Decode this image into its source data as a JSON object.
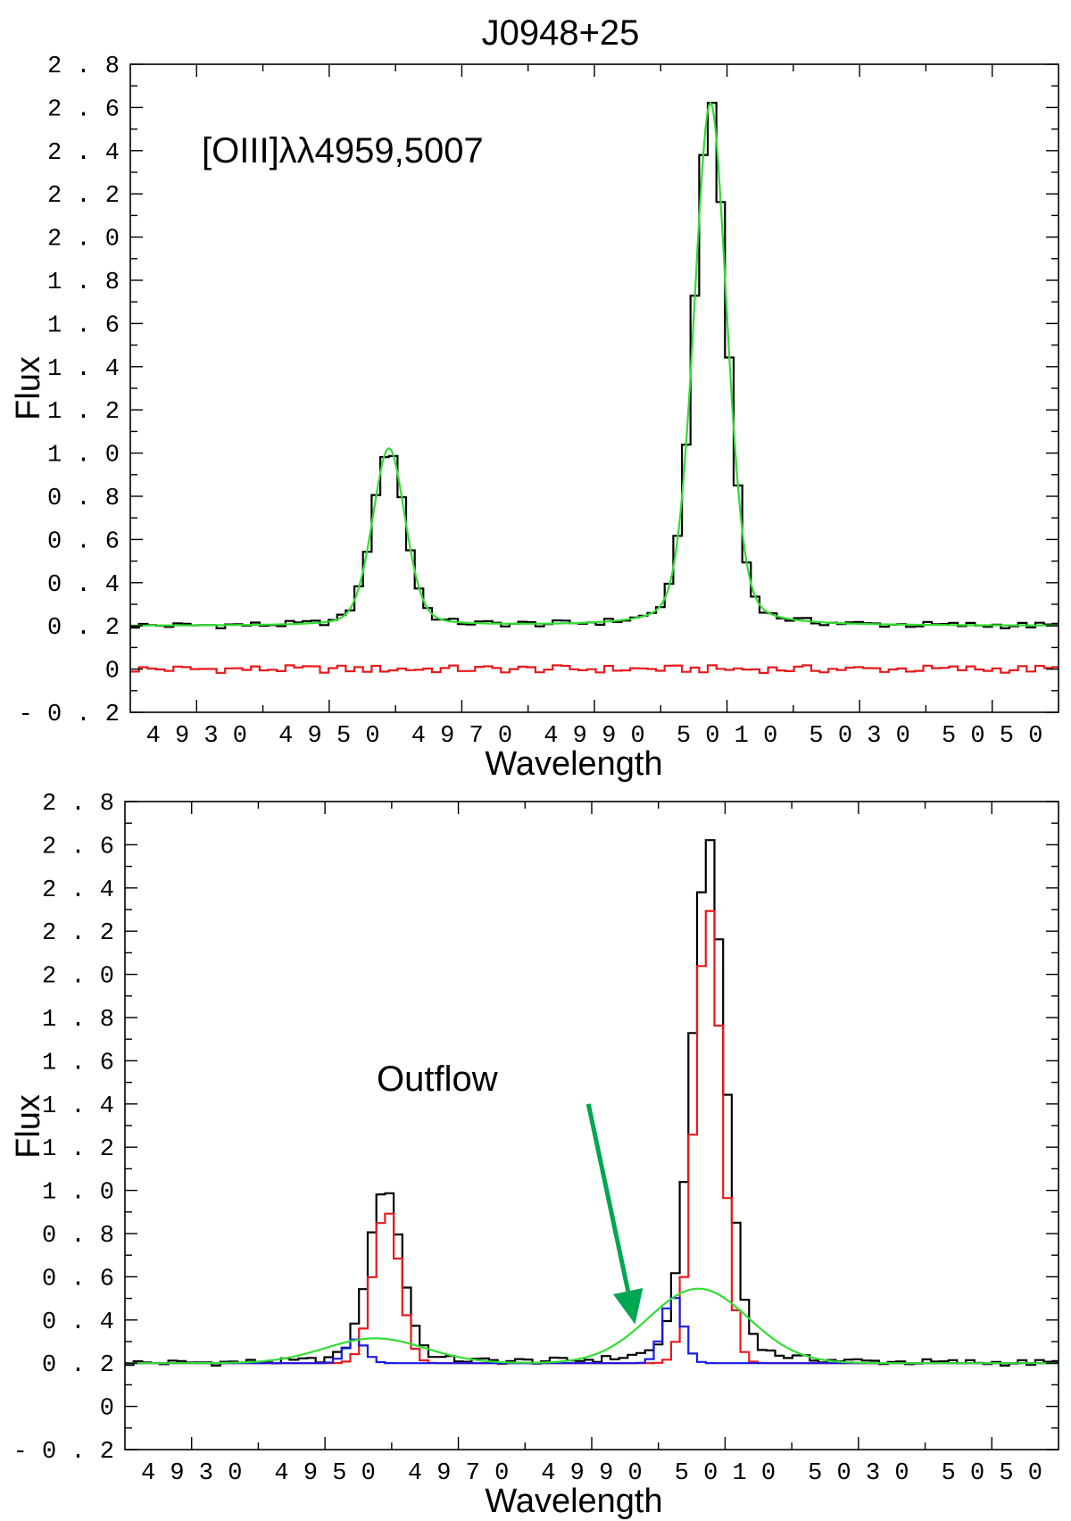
{
  "colors": {
    "observed": "#000000",
    "model": "#33dd33",
    "residual": "#e8191c",
    "narrow": "#e8191c",
    "blue_component": "#1a1ae6",
    "outflow": "#33dd33",
    "arrow": "#00a651"
  },
  "chart_data": [
    {
      "type": "line",
      "title": "J0948+25",
      "xlabel": "Wavelength",
      "ylabel": "Flux",
      "xlim": [
        4920,
        5060
      ],
      "ylim": [
        -0.2,
        2.8
      ],
      "xticks": [
        4930,
        4950,
        4970,
        4990,
        5010,
        5030,
        5050
      ],
      "yticks": [
        "-0.2",
        "0",
        "0.2",
        "0.4",
        "0.6",
        "0.8",
        "1.0",
        "1.2",
        "1.4",
        "1.6",
        "1.8",
        "2.0",
        "2.2",
        "2.4",
        "2.6",
        "2.8"
      ],
      "grid": false,
      "annotation": "[OIII]λλ4959,5007",
      "series": [
        {
          "key": "observed",
          "style": "step",
          "model": {
            "continuum": 0.2,
            "components": [
              {
                "center": 4959,
                "amp": 0.82,
                "sigma": 2.5,
                "frac": 0.75,
                "gamma": 2.8
              },
              {
                "center": 5007.5,
                "amp": 2.42,
                "sigma": 2.5,
                "frac": 0.75,
                "gamma": 2.8
              }
            ],
            "jitter": 0.015
          }
        },
        {
          "key": "model",
          "style": "smooth",
          "model": {
            "continuum": 0.2,
            "components": [
              {
                "center": 4959,
                "amp": 0.82,
                "sigma": 2.5,
                "frac": 0.75,
                "gamma": 2.8
              },
              {
                "center": 5007.5,
                "amp": 2.42,
                "sigma": 2.5,
                "frac": 0.75,
                "gamma": 2.8
              }
            ]
          }
        },
        {
          "key": "residual",
          "style": "step",
          "model": {
            "continuum": 0.0,
            "components": [],
            "jitter": 0.018
          }
        }
      ]
    },
    {
      "type": "line",
      "xlabel": "Wavelength",
      "ylabel": "Flux",
      "xlim": [
        4920,
        5060
      ],
      "ylim": [
        -0.2,
        2.8
      ],
      "xticks": [
        4930,
        4950,
        4970,
        4990,
        5010,
        5030,
        5050
      ],
      "yticks": [
        "-0.2",
        "0",
        "0.2",
        "0.4",
        "0.6",
        "0.8",
        "1.0",
        "1.2",
        "1.4",
        "1.6",
        "1.8",
        "2.0",
        "2.2",
        "2.4",
        "2.6",
        "2.8"
      ],
      "grid": false,
      "annotation": "Outflow",
      "arrow": {
        "from": [
          4989.5,
          1.4
        ],
        "to": [
          4996.5,
          0.38
        ]
      },
      "series": [
        {
          "key": "observed",
          "style": "step",
          "model": {
            "continuum": 0.2,
            "components": [
              {
                "center": 4959,
                "amp": 0.82,
                "sigma": 2.5,
                "frac": 0.75,
                "gamma": 2.8
              },
              {
                "center": 5007.5,
                "amp": 2.42,
                "sigma": 2.5,
                "frac": 0.75,
                "gamma": 2.8
              }
            ],
            "jitter": 0.015
          }
        },
        {
          "key": "narrow",
          "style": "step",
          "model": {
            "continuum": 0.2,
            "components": [
              {
                "center": 4959.2,
                "amp": 0.71,
                "sigma": 2.0
              },
              {
                "center": 5007.5,
                "amp": 2.11,
                "sigma": 2.0
              }
            ]
          }
        },
        {
          "key": "blue_component",
          "style": "step",
          "model": {
            "continuum": 0.2,
            "components": [
              {
                "center": 4954.6,
                "amp": 0.11,
                "sigma": 1.5
              },
              {
                "center": 5002.2,
                "amp": 0.31,
                "sigma": 1.5
              }
            ]
          }
        },
        {
          "key": "outflow",
          "style": "smooth",
          "model": {
            "continuum": 0.2,
            "components": [
              {
                "center": 4957.5,
                "amp": 0.115,
                "sigma": 7.5
              },
              {
                "center": 5006,
                "amp": 0.345,
                "sigma": 7.5
              }
            ]
          }
        }
      ]
    }
  ]
}
